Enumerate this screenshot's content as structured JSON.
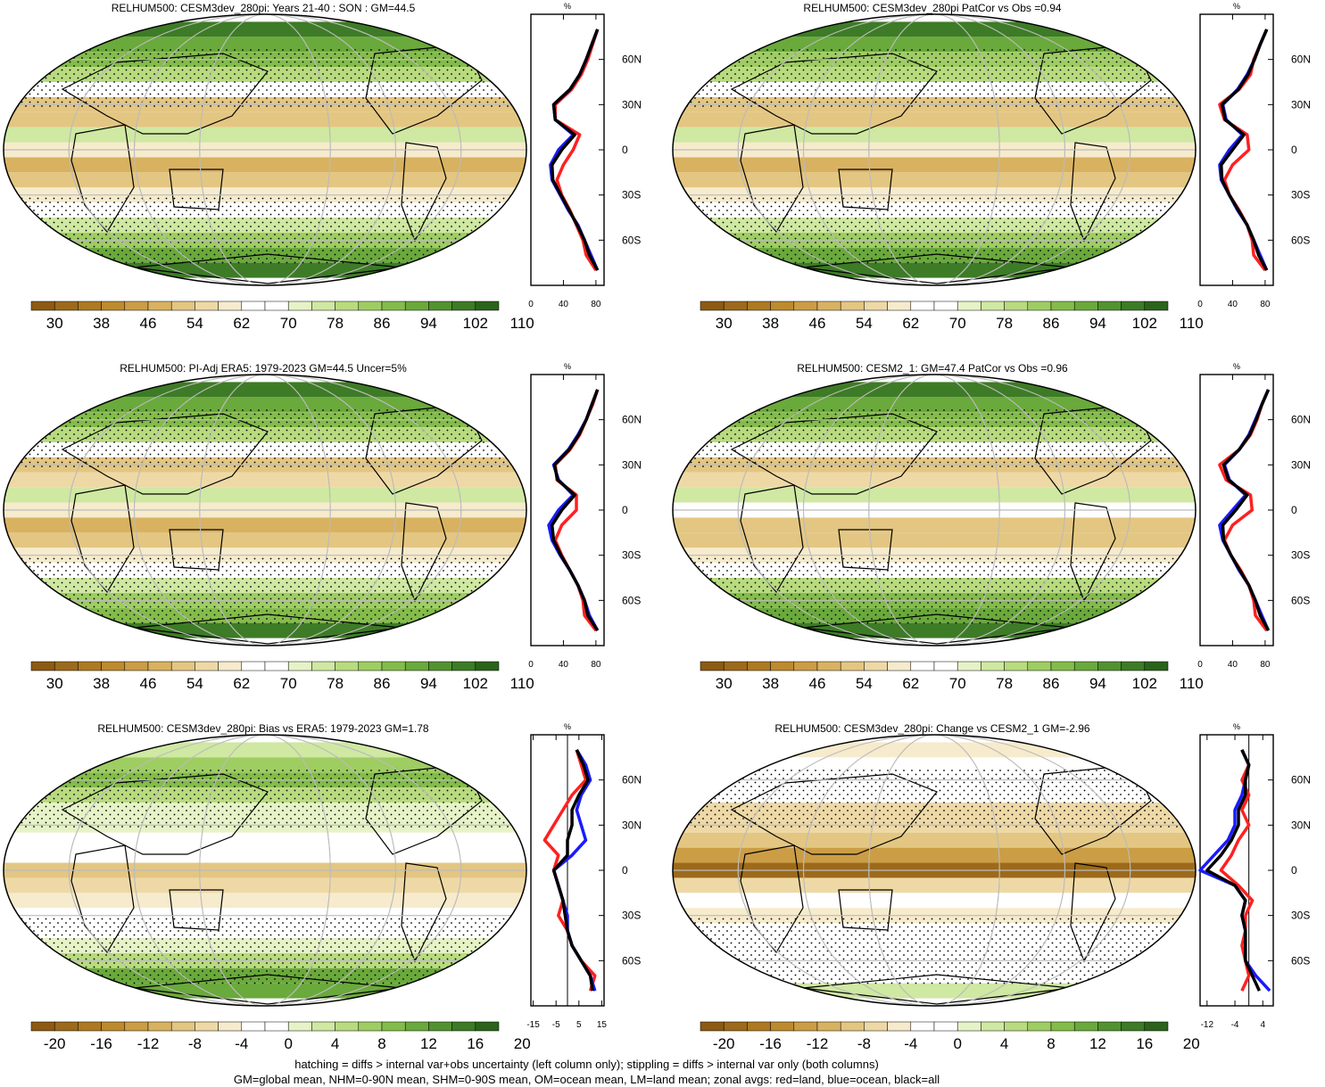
{
  "colors": {
    "brown_to_green": [
      "#8c5a12",
      "#9c6a1a",
      "#ad7a22",
      "#bd8b2e",
      "#cb9d45",
      "#d8b260",
      "#e3c682",
      "#eed9a6",
      "#f6ebcc",
      "#ffffff",
      "#ffffff",
      "#e6f3c7",
      "#cfe8a2",
      "#b8db7f",
      "#9ecd62",
      "#84bc4b",
      "#6aa93c",
      "#529230",
      "#3d7b26",
      "#2b631c"
    ],
    "land_gray": "#cfcfcf",
    "grid": "#bbbbbb",
    "land_line": "#ff2020",
    "ocean_line": "#1a1aff",
    "all_line": "#000000"
  },
  "caption": {
    "line1": "hatching = diffs > internal var+obs uncertainty (left column only); stippling = diffs > internal var only (both columns)",
    "line2": "GM=global mean, NHM=0-90N mean, SHM=0-90S mean, OM=ocean mean, LM=land mean; zonal avgs: red=land, blue=ocean, black=all"
  },
  "lat_ticks": [
    "60N",
    "30N",
    "0",
    "30S",
    "60S"
  ],
  "chart_data": [
    {
      "type": "heatmap",
      "title": "RELHUM500: CESM3dev_280pi: Years 21-40 : SON : GM=44.5",
      "colorbar_labels": [
        "30",
        "38",
        "46",
        "54",
        "62",
        "70",
        "78",
        "86",
        "94",
        "102",
        "110"
      ],
      "zonal_profile": {
        "xlabel": "%",
        "x_ticks": [
          "0",
          "40",
          "80"
        ],
        "xlim": [
          0,
          90
        ],
        "lat": [
          80,
          70,
          60,
          50,
          40,
          30,
          20,
          10,
          0,
          -10,
          -20,
          -30,
          -40,
          -50,
          -60,
          -70,
          -80
        ],
        "series": [
          {
            "name": "land",
            "values": [
              82,
              76,
              70,
              62,
              50,
              30,
              30,
              60,
              52,
              40,
              32,
              38,
              48,
              56,
              64,
              68,
              80
            ]
          },
          {
            "name": "ocean",
            "values": [
              82,
              75,
              68,
              60,
              48,
              28,
              30,
              52,
              34,
              24,
              26,
              36,
              46,
              58,
              66,
              74,
              82
            ]
          },
          {
            "name": "all",
            "values": [
              82,
              75,
              68,
              60,
              48,
              28,
              30,
              54,
              38,
              26,
              27,
              37,
              47,
              57,
              66,
              72,
              82
            ]
          }
        ]
      }
    },
    {
      "type": "heatmap",
      "title": "RELHUM500: CESM3dev_280pi PatCor vs Obs =0.94",
      "colorbar_labels": [
        "30",
        "38",
        "46",
        "54",
        "62",
        "70",
        "78",
        "86",
        "94",
        "102",
        "110"
      ],
      "zonal_profile": {
        "xlabel": "%",
        "x_ticks": [
          "0",
          "40",
          "80"
        ],
        "xlim": [
          0,
          90
        ],
        "lat": [
          80,
          70,
          60,
          50,
          40,
          30,
          20,
          10,
          0,
          -10,
          -20,
          -30,
          -40,
          -50,
          -60,
          -70,
          -80
        ],
        "series": [
          {
            "name": "land",
            "values": [
              82,
              74,
              66,
              62,
              48,
              24,
              30,
              58,
              60,
              40,
              30,
              36,
              48,
              58,
              64,
              66,
              80
            ]
          },
          {
            "name": "ocean",
            "values": [
              82,
              74,
              67,
              58,
              46,
              28,
              32,
              52,
              36,
              24,
              26,
              36,
              46,
              58,
              66,
              74,
              82
            ]
          },
          {
            "name": "all",
            "values": [
              82,
              74,
              67,
              59,
              47,
              27,
              31,
              54,
              40,
              26,
              27,
              36,
              47,
              58,
              66,
              72,
              82
            ]
          }
        ]
      }
    },
    {
      "type": "heatmap",
      "title": "RELHUM500: PI-Adj ERA5: 1979-2023 GM=44.5 Uncer=5%",
      "colorbar_labels": [
        "30",
        "38",
        "46",
        "54",
        "62",
        "70",
        "78",
        "86",
        "94",
        "102",
        "110"
      ],
      "zonal_profile": {
        "xlabel": "%",
        "x_ticks": [
          "0",
          "40",
          "80"
        ],
        "xlim": [
          0,
          90
        ],
        "lat": [
          80,
          70,
          60,
          50,
          40,
          30,
          20,
          10,
          0,
          -10,
          -20,
          -30,
          -40,
          -50,
          -60,
          -70,
          -80
        ],
        "series": [
          {
            "name": "land",
            "values": [
              82,
              76,
              68,
              60,
              48,
              30,
              32,
              56,
              56,
              38,
              30,
              38,
              48,
              58,
              64,
              66,
              80
            ]
          },
          {
            "name": "ocean",
            "values": [
              82,
              75,
              68,
              58,
              46,
              28,
              34,
              52,
              34,
              22,
              26,
              36,
              48,
              58,
              66,
              72,
              82
            ]
          },
          {
            "name": "all",
            "values": [
              82,
              75,
              68,
              59,
              47,
              29,
              33,
              54,
              38,
              26,
              28,
              37,
              48,
              58,
              66,
              70,
              82
            ]
          }
        ]
      }
    },
    {
      "type": "heatmap",
      "title": "RELHUM500: CESM2_1: GM=47.4 PatCor vs Obs =0.96",
      "colorbar_labels": [
        "30",
        "38",
        "46",
        "54",
        "62",
        "70",
        "78",
        "86",
        "94",
        "102",
        "110"
      ],
      "zonal_profile": {
        "xlabel": "%",
        "x_ticks": [
          "0",
          "40",
          "80"
        ],
        "xlim": [
          0,
          90
        ],
        "lat": [
          80,
          70,
          60,
          50,
          40,
          30,
          20,
          10,
          0,
          -10,
          -20,
          -30,
          -40,
          -50,
          -60,
          -70,
          -80
        ],
        "series": [
          {
            "name": "land",
            "values": [
              84,
              76,
              70,
              62,
              48,
              24,
              32,
              62,
              64,
              40,
              30,
              38,
              50,
              60,
              66,
              68,
              82
            ]
          },
          {
            "name": "ocean",
            "values": [
              84,
              76,
              68,
              60,
              48,
              30,
              36,
              56,
              40,
              24,
              28,
              38,
              48,
              60,
              68,
              76,
              84
            ]
          },
          {
            "name": "all",
            "values": [
              84,
              76,
              69,
              61,
              48,
              29,
              35,
              58,
              44,
              28,
              29,
              38,
              49,
              60,
              68,
              74,
              84
            ]
          }
        ]
      }
    },
    {
      "type": "heatmap",
      "title": "RELHUM500: CESM3dev_280pi: Bias vs ERA5: 1979-2023  GM=1.78",
      "colorbar_labels": [
        "-20",
        "-16",
        "-12",
        "-8",
        "-4",
        "0",
        "4",
        "8",
        "12",
        "16",
        "20"
      ],
      "zonal_profile": {
        "xlabel": "%",
        "x_ticks": [
          "-15",
          "-5",
          "5",
          "15"
        ],
        "xlim": [
          -16,
          16
        ],
        "zero_line": 0,
        "lat": [
          80,
          70,
          60,
          50,
          40,
          30,
          20,
          10,
          0,
          -10,
          -20,
          -30,
          -40,
          -50,
          -60,
          -70,
          -80
        ],
        "series": [
          {
            "name": "land",
            "values": [
              4,
              6,
              8,
              2,
              -2,
              -6,
              -10,
              -4,
              -6,
              -4,
              -2,
              -4,
              0,
              2,
              6,
              12,
              10
            ]
          },
          {
            "name": "ocean",
            "values": [
              4,
              8,
              10,
              6,
              4,
              6,
              8,
              2,
              -6,
              -4,
              -2,
              0,
              0,
              2,
              6,
              10,
              12
            ]
          },
          {
            "name": "all",
            "values": [
              4,
              7,
              9,
              5,
              2,
              2,
              0,
              0,
              -6,
              -4,
              -2,
              -1,
              0,
              2,
              6,
              10,
              11
            ]
          }
        ]
      }
    },
    {
      "type": "heatmap",
      "title": "RELHUM500: CESM3dev_280pi: Change vs CESM2_1 GM=-2.96",
      "colorbar_labels": [
        "-20",
        "-16",
        "-12",
        "-8",
        "-4",
        "0",
        "4",
        "8",
        "12",
        "16",
        "20"
      ],
      "zonal_profile": {
        "xlabel": "%",
        "x_ticks": [
          "-12",
          "-4",
          "4"
        ],
        "xlim": [
          -14,
          7
        ],
        "zero_line": 0,
        "lat": [
          80,
          70,
          60,
          50,
          40,
          30,
          20,
          10,
          0,
          -10,
          -20,
          -30,
          -40,
          -50,
          -60,
          -70,
          -80
        ],
        "series": [
          {
            "name": "land",
            "values": [
              -2,
              0,
              -2,
              0,
              -2,
              0,
              -3,
              -5,
              -8,
              -3,
              1,
              -1,
              -1,
              -2,
              -1,
              0,
              -2
            ]
          },
          {
            "name": "ocean",
            "values": [
              -2,
              0,
              -1,
              -2,
              -4,
              -4,
              -6,
              -10,
              -14,
              -4,
              -1,
              -2,
              -1,
              -1,
              -1,
              2,
              6
            ]
          },
          {
            "name": "all",
            "values": [
              -2,
              0,
              -1,
              -1,
              -3,
              -3,
              -5,
              -8,
              -12,
              -4,
              -1,
              -2,
              -1,
              -1,
              -1,
              1,
              3
            ]
          }
        ]
      }
    }
  ]
}
